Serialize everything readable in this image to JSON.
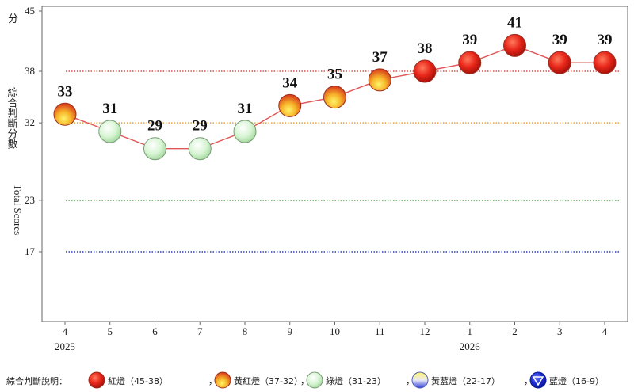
{
  "chart_data": {
    "type": "line",
    "y_unit": "分",
    "ylabel_zh": "綜合判斷分數",
    "ylabel_en": "Total Scores",
    "y_ticks": [
      17,
      23,
      32,
      38,
      45
    ],
    "ylim": [
      9,
      45
    ],
    "categories": [
      "4",
      "5",
      "6",
      "7",
      "8",
      "9",
      "10",
      "11",
      "12",
      "1",
      "2",
      "3",
      "4"
    ],
    "years": [
      {
        "index": 0,
        "label": "2025"
      },
      {
        "index": 9,
        "label": "2026"
      }
    ],
    "values": [
      33,
      31,
      29,
      29,
      31,
      34,
      35,
      37,
      38,
      39,
      41,
      39,
      39
    ],
    "thresholds": [
      {
        "value": 38,
        "color": "#d9534f"
      },
      {
        "value": 32,
        "color": "#e8a23a"
      },
      {
        "value": 23,
        "color": "#3d8a3d"
      },
      {
        "value": 17,
        "color": "#2b3fb5"
      }
    ],
    "grid": false,
    "line_color": "#e05555"
  },
  "legend": {
    "title": "綜合判斷說明：",
    "items": [
      {
        "label": "紅燈（45-38）",
        "icon": "red-light-icon"
      },
      {
        "label": "黃紅燈（37-32）",
        "icon": "yellow-red-light-icon"
      },
      {
        "label": "綠燈（31-23）",
        "icon": "green-light-icon"
      },
      {
        "label": "黃藍燈（22-17）",
        "icon": "yellow-blue-light-icon"
      },
      {
        "label": "藍燈（16-9）",
        "icon": "blue-light-icon"
      }
    ],
    "separator": "，"
  }
}
